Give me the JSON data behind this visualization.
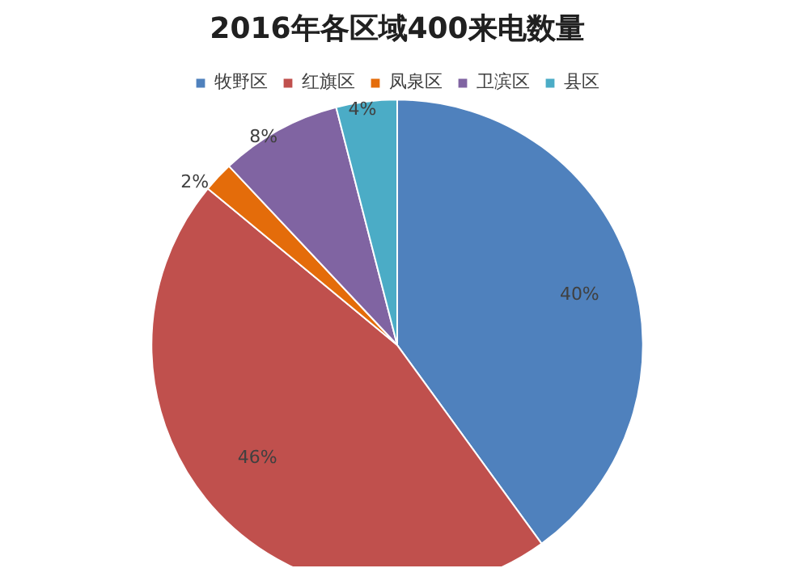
{
  "chart_data": {
    "type": "pie",
    "title": "2016年各区域400来电数量",
    "categories": [
      "牧野区",
      "红旗区",
      "凤泉区",
      "卫滨区",
      "县区"
    ],
    "values": [
      40,
      46,
      2,
      8,
      4
    ],
    "value_labels": [
      "40%",
      "46%",
      "2%",
      "8%",
      "4%"
    ],
    "colors": [
      "#4f81bd",
      "#c0504d",
      "#e46c0a",
      "#8064a2",
      "#4bacc6"
    ],
    "legend": "top"
  }
}
